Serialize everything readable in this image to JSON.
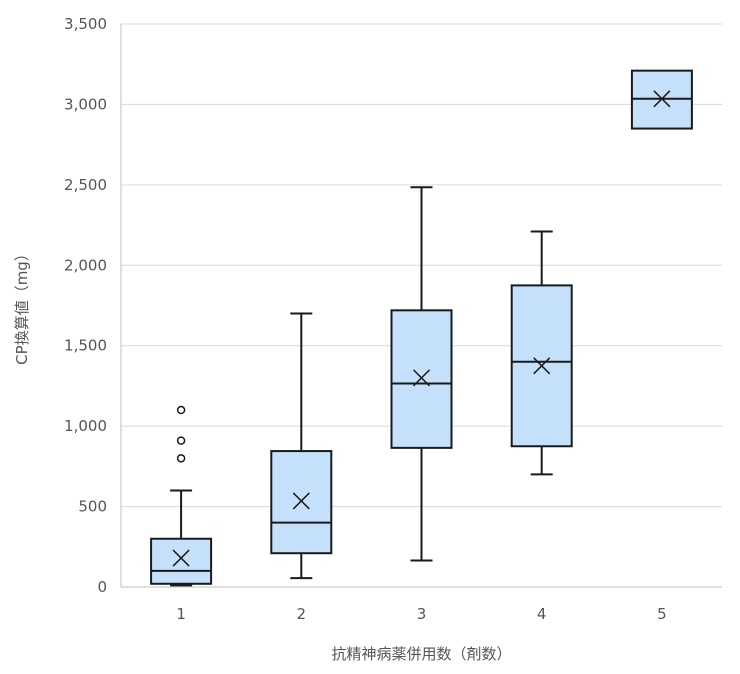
{
  "chart_data": {
    "type": "box",
    "title": "",
    "xlabel": "抗精神病薬併用数（剤数）",
    "ylabel": "CP換算値（mg）",
    "ylim": [
      0,
      3500
    ],
    "yticks": [
      {
        "value": 0,
        "label": "0"
      },
      {
        "value": 500,
        "label": "500"
      },
      {
        "value": 1000,
        "label": "1,000"
      },
      {
        "value": 1500,
        "label": "1,500"
      },
      {
        "value": 2000,
        "label": "2,000"
      },
      {
        "value": 2500,
        "label": "2,500"
      },
      {
        "value": 3000,
        "label": "3,000"
      },
      {
        "value": 3500,
        "label": "3,500"
      }
    ],
    "grid": true,
    "box_color": "#c5e0fa",
    "line_color": "#1a1a1a",
    "categories": [
      "1",
      "2",
      "3",
      "4",
      "5"
    ],
    "boxes": [
      {
        "category": "1",
        "min": 10,
        "q1": 20,
        "median": 100,
        "q3": 300,
        "max": 600,
        "mean": 180,
        "outliers": [
          800,
          910,
          1100
        ]
      },
      {
        "category": "2",
        "min": 55,
        "q1": 210,
        "median": 400,
        "q3": 845,
        "max": 1700,
        "mean": 535,
        "outliers": []
      },
      {
        "category": "3",
        "min": 165,
        "q1": 865,
        "median": 1265,
        "q3": 1720,
        "max": 2485,
        "mean": 1300,
        "outliers": []
      },
      {
        "category": "4",
        "min": 700,
        "q1": 875,
        "median": 1400,
        "q3": 1875,
        "max": 2210,
        "mean": 1375,
        "outliers": []
      },
      {
        "category": "5",
        "min": 2850,
        "q1": 2850,
        "median": 3035,
        "q3": 3210,
        "max": 3210,
        "mean": 3035,
        "outliers": []
      }
    ]
  }
}
